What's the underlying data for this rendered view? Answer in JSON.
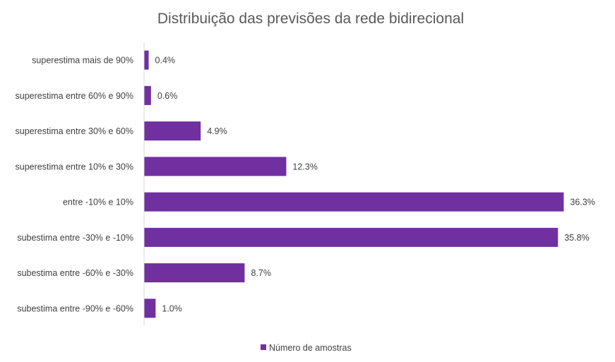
{
  "chart_data": {
    "type": "bar",
    "orientation": "horizontal",
    "title": "Distribuição das previsões da rede bidirecional",
    "categories": [
      "superestima mais de 90%",
      "superestima entre 60% e 90%",
      "superestima entre 30% e 60%",
      "superestima entre 10% e 30%",
      "entre -10% e 10%",
      "subestima entre -30% e -10%",
      "subestima entre -60% e -30%",
      "subestima entre -90% e -60%"
    ],
    "series": [
      {
        "name": "Número de amostras",
        "values": [
          0.4,
          0.6,
          4.9,
          12.3,
          36.3,
          35.8,
          8.7,
          1.0
        ],
        "labels": [
          "0.4%",
          "0.6%",
          "4.9%",
          "12.3%",
          "36.3%",
          "35.8%",
          "8.7%",
          "1.0%"
        ],
        "color": "#7030A0"
      }
    ],
    "xlim": [
      0,
      40
    ],
    "grid": false,
    "legend": "bottom"
  }
}
